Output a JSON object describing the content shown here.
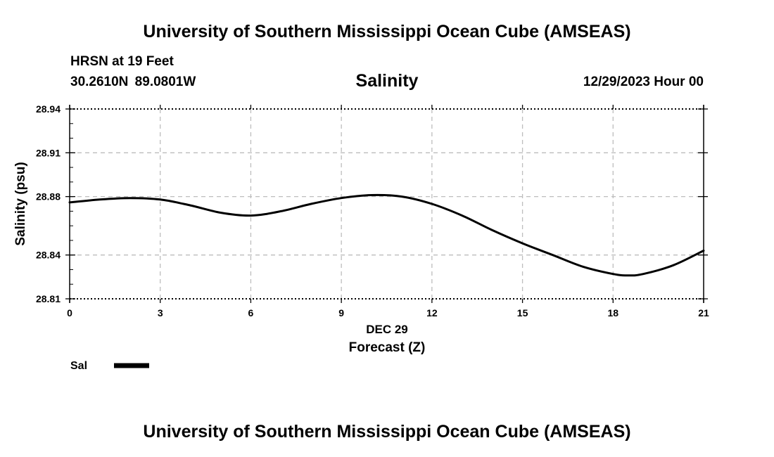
{
  "header": {
    "title": "University of Southern Mississippi Ocean Cube (AMSEAS)",
    "station": "HRSN at 19 Feet",
    "coordinates": "30.2610N  89.0801W",
    "variable": "Salinity",
    "datetime": "12/29/2023 Hour 00"
  },
  "footer": {
    "title": "University of Southern Mississippi Ocean Cube (AMSEAS)"
  },
  "chart_data": {
    "type": "line",
    "title": "Salinity",
    "xlabel": "Forecast (Z)",
    "xlabel_date": "DEC 29",
    "ylabel": "Salinity (psu)",
    "xlim": [
      0,
      21
    ],
    "ylim": [
      28.81,
      28.94
    ],
    "xticks": [
      0,
      3,
      6,
      9,
      12,
      15,
      18,
      21
    ],
    "xtick_labels": [
      "0",
      "3",
      "6",
      "9",
      "12",
      "15",
      "18",
      "21"
    ],
    "yticks": [
      28.81,
      28.84,
      28.88,
      28.91,
      28.94
    ],
    "ytick_labels": [
      "28.81",
      "28.84",
      "28.88",
      "28.91",
      "28.94"
    ],
    "grid": true,
    "legend_position": "bottom-left",
    "series": [
      {
        "name": "Sal",
        "color": "#000000",
        "x": [
          0,
          1,
          2,
          3,
          4,
          5,
          6,
          7,
          8,
          9,
          10,
          11,
          12,
          13,
          14,
          15,
          16,
          17,
          18,
          18.5,
          19,
          20,
          21
        ],
        "y": [
          28.876,
          28.878,
          28.879,
          28.878,
          28.874,
          28.869,
          28.867,
          28.87,
          28.875,
          28.879,
          28.881,
          28.88,
          28.875,
          28.867,
          28.857,
          28.848,
          28.84,
          28.832,
          28.827,
          28.826,
          28.827,
          28.833,
          28.843
        ]
      }
    ]
  }
}
